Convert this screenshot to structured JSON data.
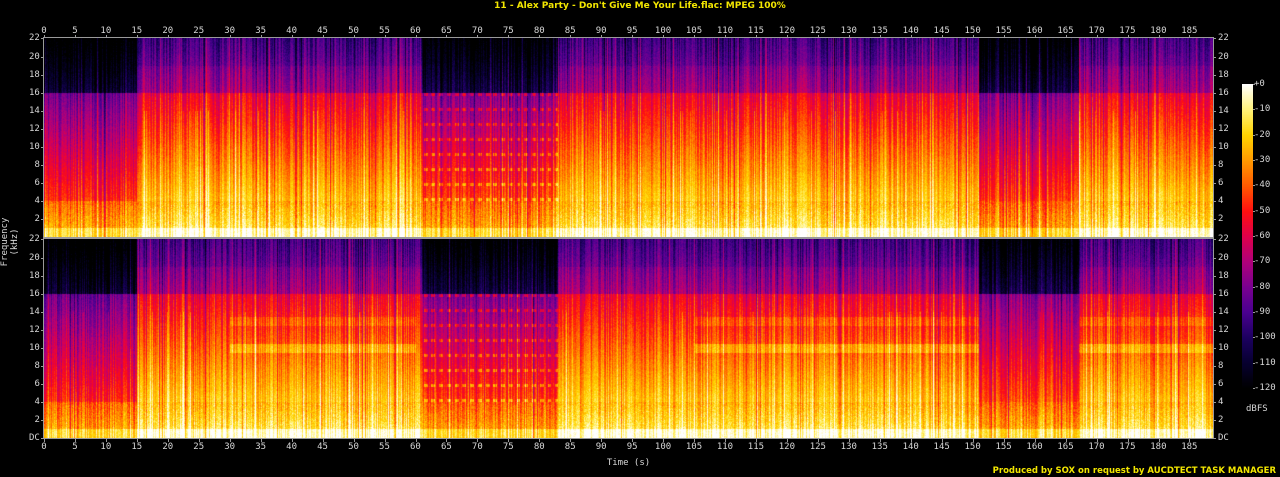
{
  "title": "11 - Alex Party - Don't Give Me Your Life.flac: MPEG 100%",
  "credit": "Produced by SOX on request by AUCDTECT TASK MANAGER",
  "chart_data": {
    "type": "heatmap",
    "subtype": "spectrogram",
    "title": "11 - Alex Party - Don't Give Me Your Life.flac: MPEG 100%",
    "xlabel": "Time (s)",
    "ylabel": "Frequency (kHz)",
    "colorbar_label": "dBFS",
    "channels": 2,
    "x_ticks": [
      0,
      5,
      10,
      15,
      20,
      25,
      30,
      35,
      40,
      45,
      50,
      55,
      60,
      65,
      70,
      75,
      80,
      85,
      90,
      95,
      100,
      105,
      110,
      115,
      120,
      125,
      130,
      135,
      140,
      145,
      150,
      155,
      160,
      165,
      170,
      175,
      180,
      185
    ],
    "y_ticks": [
      "DC",
      "2",
      "4",
      "6",
      "8",
      "10",
      "12",
      "14",
      "16",
      "18",
      "20",
      "22"
    ],
    "xlim": [
      0,
      188.8
    ],
    "ylim_khz": [
      0,
      22.05
    ],
    "colorbar_ticks": [
      "+0",
      "-10",
      "-20",
      "-30",
      "-40",
      "-50",
      "-60",
      "-70",
      "-80",
      "-90",
      "-100",
      "-110",
      "-120"
    ],
    "zlim_dbfs": [
      -120,
      0
    ],
    "colormap_stops": [
      "#ffffff",
      "#fff27a",
      "#ffd400",
      "#ff9a00",
      "#ff5a00",
      "#ff1010",
      "#e0004a",
      "#b0007a",
      "#7a0090",
      "#4a0090",
      "#1c0060",
      "#070030",
      "#000000"
    ],
    "observations": {
      "lowpass_cutoff_khz": 16,
      "quiet_sections_s": [
        [
          0,
          15
        ],
        [
          61,
          83
        ],
        [
          151,
          167
        ]
      ],
      "channel2_band_khz": [
        10,
        13
      ],
      "channel2_band_sections_s": [
        [
          30,
          60
        ],
        [
          105,
          151
        ],
        [
          167,
          188.8
        ]
      ]
    }
  },
  "axes": {
    "x_ticks": [
      "0",
      "5",
      "10",
      "15",
      "20",
      "25",
      "30",
      "35",
      "40",
      "45",
      "50",
      "55",
      "60",
      "65",
      "70",
      "75",
      "80",
      "85",
      "90",
      "95",
      "100",
      "105",
      "110",
      "115",
      "120",
      "125",
      "130",
      "135",
      "140",
      "145",
      "150",
      "155",
      "160",
      "165",
      "170",
      "175",
      "180",
      "185"
    ],
    "y_ticks_top": [
      "2",
      "4",
      "6",
      "8",
      "10",
      "12",
      "14",
      "16",
      "18",
      "20",
      "22"
    ],
    "y_ticks_bottom": [
      "DC",
      "2",
      "4",
      "6",
      "8",
      "10",
      "12",
      "14",
      "16",
      "18",
      "20",
      "22"
    ],
    "xlabel": "Time (s)",
    "ylabel": "Frequency (kHz)"
  },
  "colorbar": {
    "ticks": [
      "+0",
      "-10",
      "-20",
      "-30",
      "-40",
      "-50",
      "-60",
      "-70",
      "-80",
      "-90",
      "-100",
      "-110",
      "-120"
    ],
    "unit": "dBFS"
  }
}
